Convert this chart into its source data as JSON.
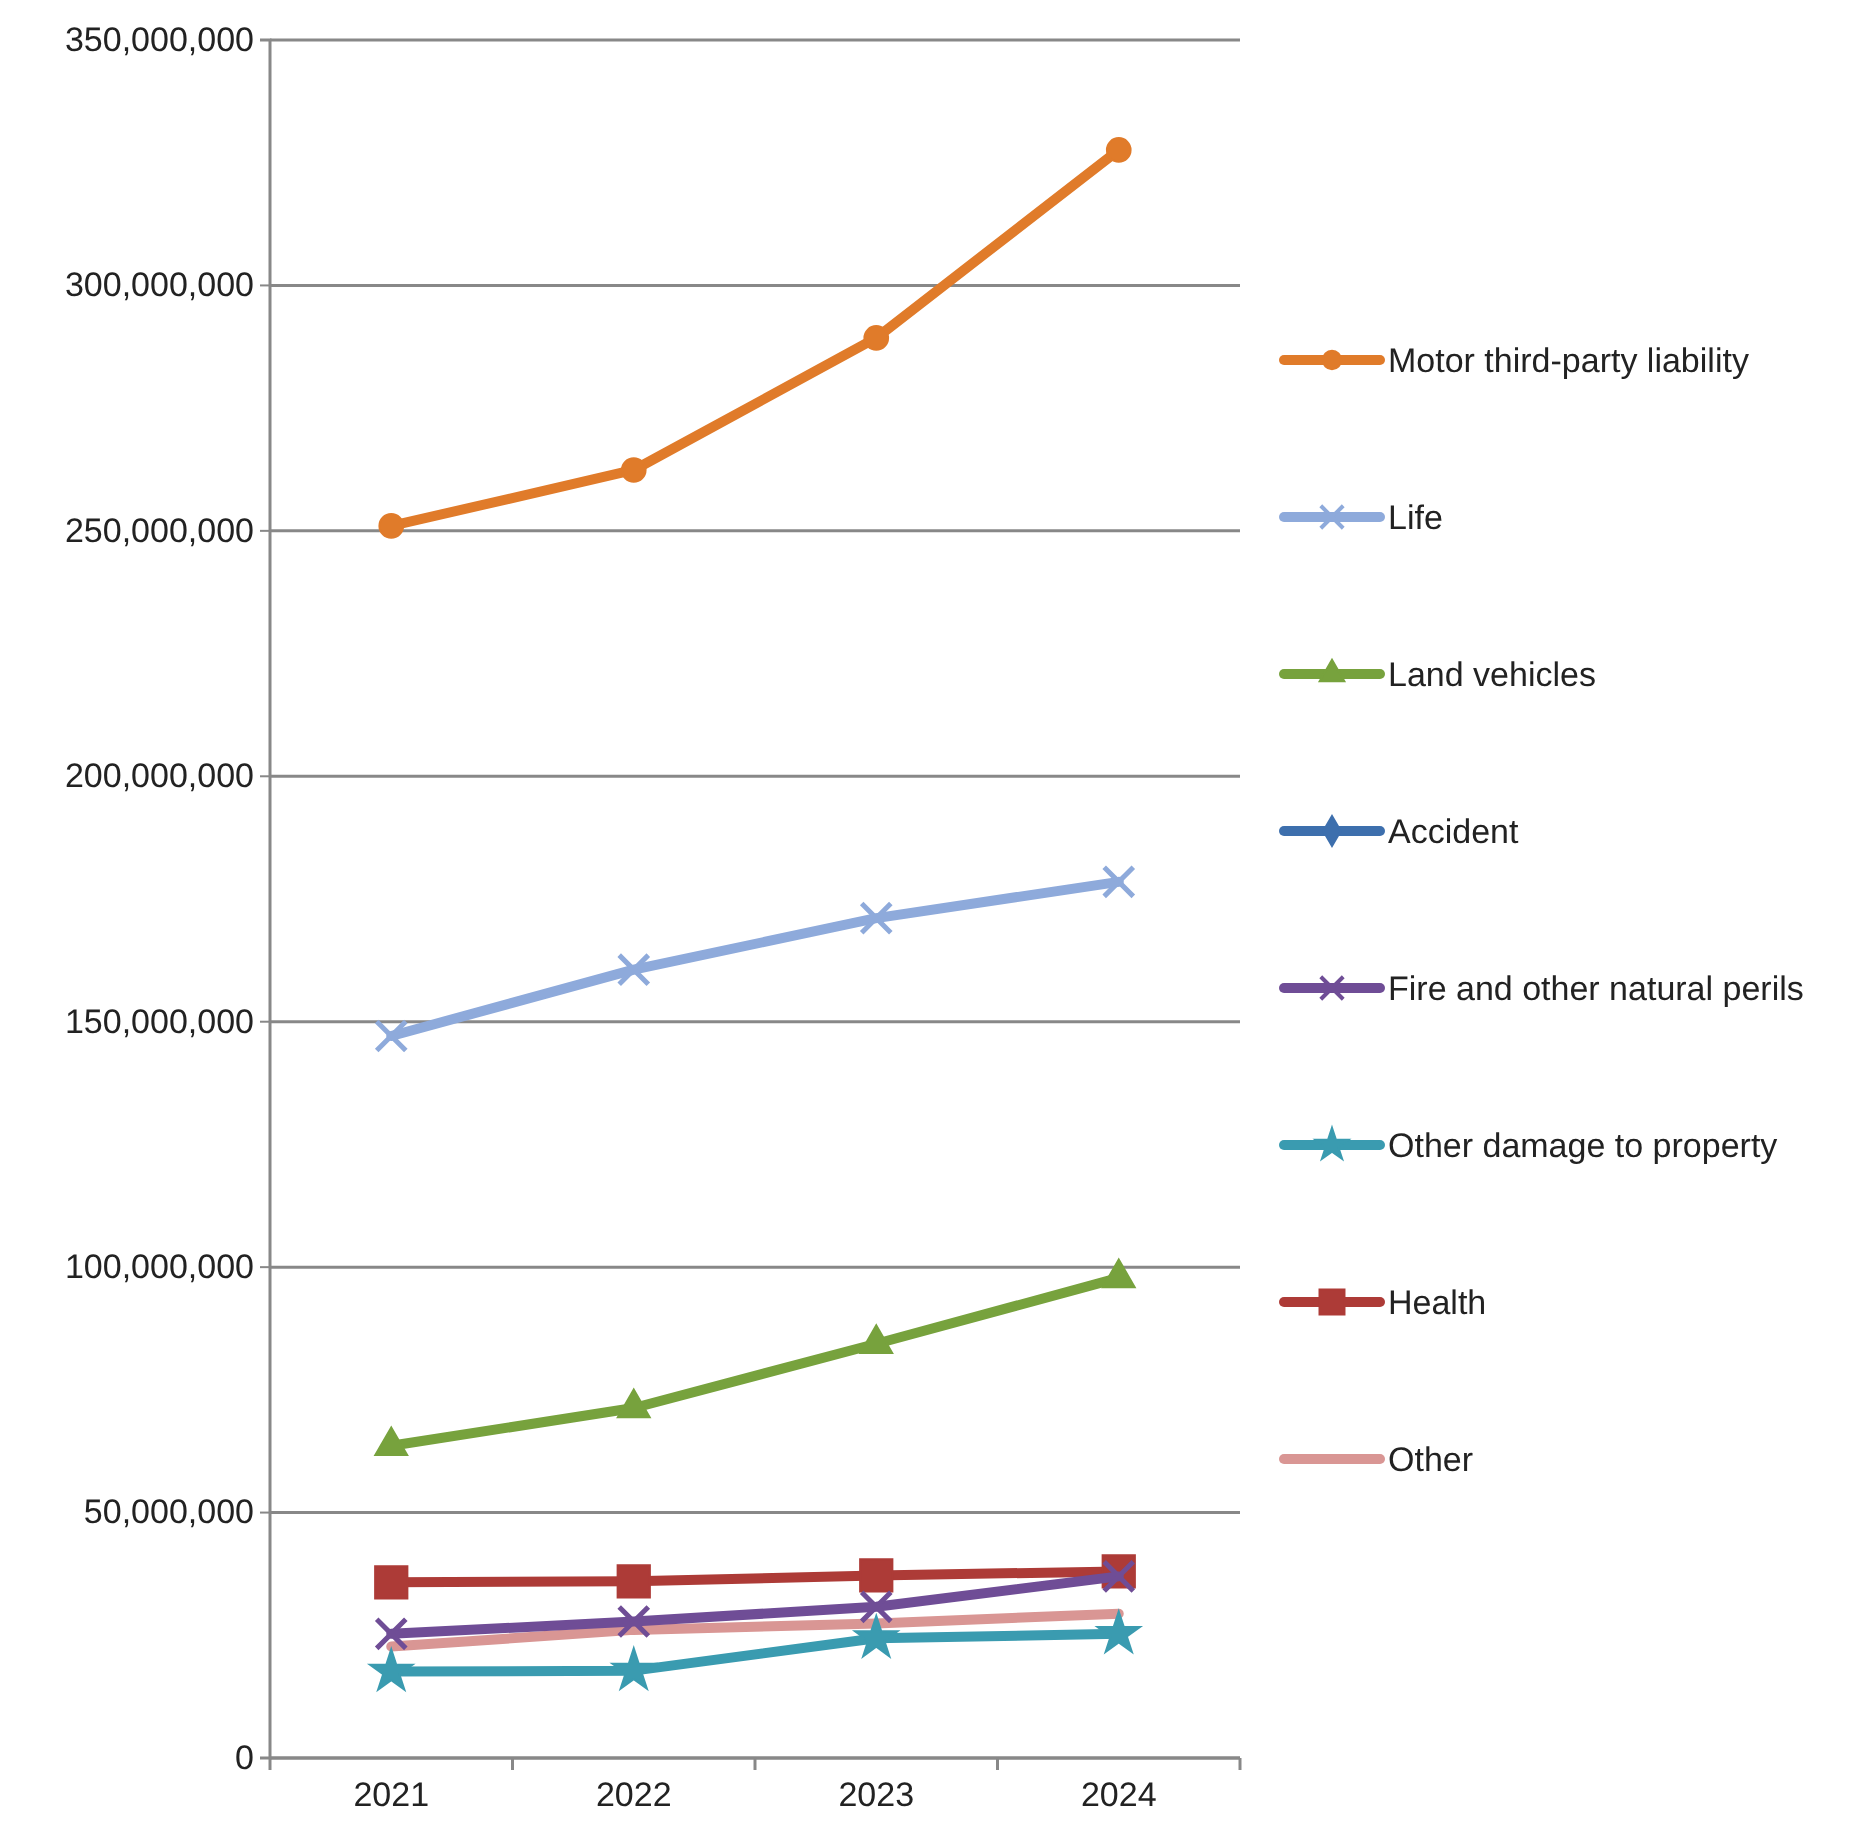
{
  "chart_data": {
    "type": "line",
    "categories": [
      "2021",
      "2022",
      "2023",
      "2024"
    ],
    "ylim": [
      0,
      350000000
    ],
    "yticks": [
      0,
      {
        "value": 50000000,
        "label": "50,000,000"
      },
      {
        "value": 100000000,
        "label": "100,000,000"
      },
      {
        "value": 150000000,
        "label": "150,000,000"
      },
      {
        "value": 200000000,
        "label": "200,000,000"
      },
      {
        "value": 250000000,
        "label": "250,000,000"
      },
      {
        "value": 300000000,
        "label": "300,000,000"
      },
      {
        "value": 350000000,
        "label": "350,000,000"
      }
    ],
    "grid": "y",
    "legend": "right",
    "line_style": "solid",
    "series": [
      {
        "name": "Motor third-party liability",
        "color": "#e07b2a",
        "marker": "circle",
        "values": [
          251000000,
          262400000,
          289300000,
          327600000
        ]
      },
      {
        "name": "Life",
        "color": "#8eaadb",
        "marker": "cross",
        "values": [
          147100000,
          160600000,
          171100000,
          178500000
        ]
      },
      {
        "name": "Land vehicles",
        "color": "#77a23d",
        "marker": "triangle",
        "values": [
          63600000,
          71300000,
          84400000,
          97800000
        ]
      },
      {
        "name": "Accident",
        "color": "#3d6fad",
        "marker": "diamond",
        "values": [
          null,
          null,
          null,
          null
        ]
      },
      {
        "name": "Fire and other natural perils",
        "color": "#6f4d96",
        "marker": "cross",
        "values": [
          25300000,
          27800000,
          30800000,
          37000000
        ]
      },
      {
        "name": "Other damage to property",
        "color": "#3a9bb0",
        "marker": "star",
        "values": [
          17600000,
          17800000,
          24400000,
          25300000
        ]
      },
      {
        "name": "Health",
        "color": "#ad3b37",
        "marker": "square",
        "values": [
          35800000,
          36000000,
          37200000,
          38000000
        ]
      },
      {
        "name": "Other",
        "color": "#d99694",
        "marker": "none",
        "values": [
          22700000,
          26100000,
          27400000,
          29400000
        ]
      }
    ]
  }
}
